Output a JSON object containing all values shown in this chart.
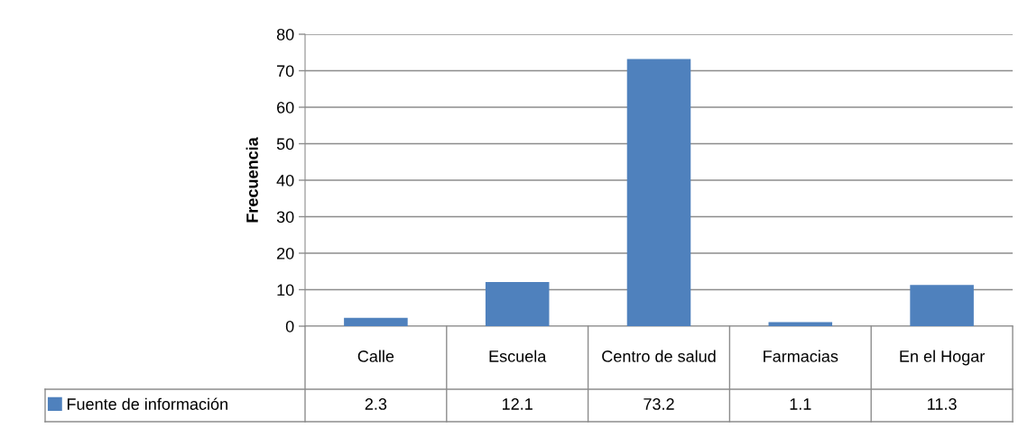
{
  "chart_data": {
    "type": "bar",
    "ylabel": "Frecuencia",
    "categories": [
      "Calle",
      "Escuela",
      "Centro de salud",
      "Farmacias",
      "En el Hogar"
    ],
    "series": [
      {
        "name": "Fuente de información",
        "color": "#4f81bd",
        "values": [
          2.3,
          12.1,
          73.2,
          1.1,
          11.3
        ]
      }
    ],
    "ylim": [
      0,
      80
    ],
    "yticks": [
      0,
      10,
      20,
      30,
      40,
      50,
      60,
      70,
      80
    ],
    "grid": "y",
    "legend": "bottom",
    "data_labels": true
  }
}
